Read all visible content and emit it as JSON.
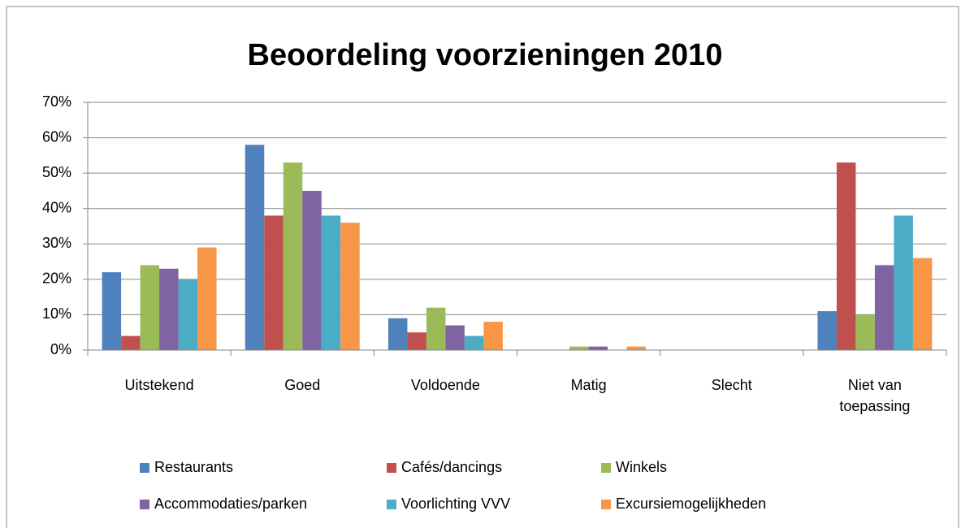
{
  "chart_data": {
    "type": "bar",
    "title": "Beoordeling voorzieningen 2010",
    "categories": [
      "Uitstekend",
      "Goed",
      "Voldoende",
      "Matig",
      "Slecht",
      "Niet van toepassing"
    ],
    "series": [
      {
        "name": "Restaurants",
        "color": "#4f81bd",
        "values": [
          22,
          58,
          9,
          0,
          0,
          11
        ]
      },
      {
        "name": "Cafés/dancings",
        "color": "#c0504d",
        "values": [
          4,
          38,
          5,
          0,
          0,
          53
        ]
      },
      {
        "name": "Winkels",
        "color": "#9bbb59",
        "values": [
          24,
          53,
          12,
          1,
          0,
          10
        ]
      },
      {
        "name": "Accommodaties/parken",
        "color": "#8064a2",
        "values": [
          23,
          45,
          7,
          1,
          0,
          24
        ]
      },
      {
        "name": "Voorlichting VVV",
        "color": "#4bacc6",
        "values": [
          20,
          38,
          4,
          0,
          0,
          38
        ]
      },
      {
        "name": "Excursiemogelijkheden",
        "color": "#f79646",
        "values": [
          29,
          36,
          8,
          1,
          0,
          26
        ]
      }
    ],
    "ylim": [
      0,
      70
    ],
    "yticks": [
      {
        "value": 0,
        "label": "0%"
      },
      {
        "value": 10,
        "label": "10%"
      },
      {
        "value": 20,
        "label": "20%"
      },
      {
        "value": 30,
        "label": "30%"
      },
      {
        "value": 40,
        "label": "40%"
      },
      {
        "value": 50,
        "label": "50%"
      },
      {
        "value": 60,
        "label": "60%"
      },
      {
        "value": 70,
        "label": "70%"
      }
    ],
    "grid": true,
    "legend": "bottom"
  }
}
